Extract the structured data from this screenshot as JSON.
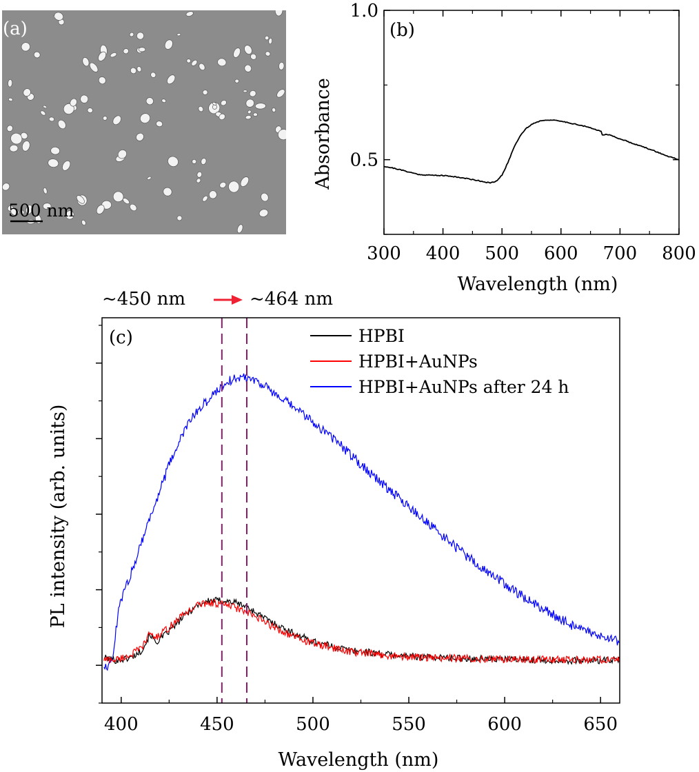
{
  "panel_a": {
    "label": "(a)",
    "scale_bar_text": "500 nm",
    "background": "#8c8c8c",
    "particle_color": "#f2f2f2"
  },
  "colors": {
    "hpbi": "#000000",
    "hpbi_aunps": "#ff0000",
    "hpbi_aunps_24h": "#0000ff",
    "marker_line": "#8b1a6b",
    "arrow": "#ee2233"
  },
  "chart_data": [
    {
      "id": "b",
      "type": "line",
      "panel_label": "(b)",
      "xlabel": "Wavelength (nm)",
      "ylabel": "Absorbance",
      "xlim": [
        300,
        800
      ],
      "ylim": [
        0.25,
        1.0
      ],
      "xticks": [
        300,
        400,
        500,
        600,
        700,
        800
      ],
      "yticks": [
        0.5,
        1.0
      ],
      "ytick_labels": [
        "0.5",
        "1.0"
      ],
      "series": [
        {
          "name": "Absorbance",
          "x": [
            300,
            320,
            340,
            360,
            380,
            400,
            420,
            440,
            460,
            470,
            480,
            490,
            500,
            510,
            520,
            530,
            540,
            550,
            560,
            570,
            580,
            600,
            620,
            640,
            660,
            668,
            670,
            680,
            700,
            720,
            740,
            760,
            780,
            800
          ],
          "values": [
            0.478,
            0.47,
            0.46,
            0.45,
            0.448,
            0.447,
            0.443,
            0.437,
            0.43,
            0.426,
            0.422,
            0.427,
            0.448,
            0.49,
            0.54,
            0.578,
            0.603,
            0.618,
            0.627,
            0.632,
            0.633,
            0.629,
            0.621,
            0.612,
            0.6,
            0.596,
            0.584,
            0.584,
            0.57,
            0.556,
            0.542,
            0.528,
            0.512,
            0.5
          ]
        }
      ]
    },
    {
      "id": "c",
      "type": "line",
      "panel_label": "(c)",
      "xlabel": "Wavelength (nm)",
      "ylabel": "PL intensity (arb. units)",
      "xlim": [
        390,
        660
      ],
      "ylim": [
        -0.5,
        4.6
      ],
      "xticks": [
        400,
        450,
        500,
        550,
        600,
        650
      ],
      "y_major_ticks": [
        0,
        1,
        2,
        3,
        4
      ],
      "markers": [
        452.5,
        465.5
      ],
      "annotation": {
        "left": "~450 nm",
        "right": "~464 nm"
      },
      "legend_position": "top-right",
      "series": [
        {
          "name": "HPBI",
          "x": [
            391,
            395,
            398,
            401,
            405,
            410,
            413,
            415,
            418,
            421,
            425,
            430,
            435,
            440,
            445,
            450,
            455,
            460,
            465,
            470,
            475,
            480,
            490,
            500,
            510,
            520,
            530,
            540,
            550,
            560,
            580,
            600,
            620,
            640,
            660
          ],
          "values": [
            0.1,
            0.08,
            0.06,
            0.08,
            0.1,
            0.18,
            0.3,
            0.42,
            0.3,
            0.36,
            0.45,
            0.58,
            0.7,
            0.8,
            0.85,
            0.86,
            0.85,
            0.83,
            0.78,
            0.7,
            0.62,
            0.55,
            0.42,
            0.32,
            0.25,
            0.2,
            0.17,
            0.14,
            0.12,
            0.11,
            0.09,
            0.08,
            0.07,
            0.06,
            0.07
          ]
        },
        {
          "name": "HPBI+AuNPs",
          "x": [
            391,
            395,
            398,
            401,
            405,
            410,
            413,
            415,
            418,
            421,
            425,
            430,
            435,
            440,
            445,
            450,
            455,
            460,
            465,
            470,
            475,
            480,
            490,
            500,
            510,
            520,
            530,
            540,
            550,
            560,
            580,
            600,
            620,
            640,
            660
          ],
          "values": [
            0.08,
            0.07,
            0.08,
            0.1,
            0.14,
            0.22,
            0.32,
            0.44,
            0.36,
            0.42,
            0.5,
            0.62,
            0.72,
            0.8,
            0.83,
            0.82,
            0.8,
            0.76,
            0.7,
            0.64,
            0.57,
            0.5,
            0.38,
            0.29,
            0.23,
            0.18,
            0.15,
            0.13,
            0.11,
            0.1,
            0.09,
            0.08,
            0.08,
            0.07,
            0.08
          ]
        },
        {
          "name": "HPBI+AuNPs after 24 h",
          "x": [
            391,
            394,
            396,
            398,
            400,
            405,
            410,
            415,
            420,
            425,
            430,
            435,
            440,
            445,
            450,
            455,
            460,
            465,
            470,
            475,
            480,
            490,
            500,
            510,
            520,
            530,
            540,
            550,
            560,
            570,
            580,
            590,
            600,
            610,
            620,
            630,
            640,
            650,
            660
          ],
          "values": [
            0.0,
            0.0,
            0.15,
            0.62,
            0.88,
            1.2,
            1.6,
            1.95,
            2.3,
            2.65,
            2.95,
            3.2,
            3.38,
            3.5,
            3.64,
            3.75,
            3.8,
            3.82,
            3.78,
            3.7,
            3.58,
            3.42,
            3.22,
            3.02,
            2.78,
            2.55,
            2.32,
            2.1,
            1.88,
            1.66,
            1.45,
            1.25,
            1.08,
            0.9,
            0.74,
            0.6,
            0.46,
            0.38,
            0.32
          ]
        }
      ]
    }
  ]
}
